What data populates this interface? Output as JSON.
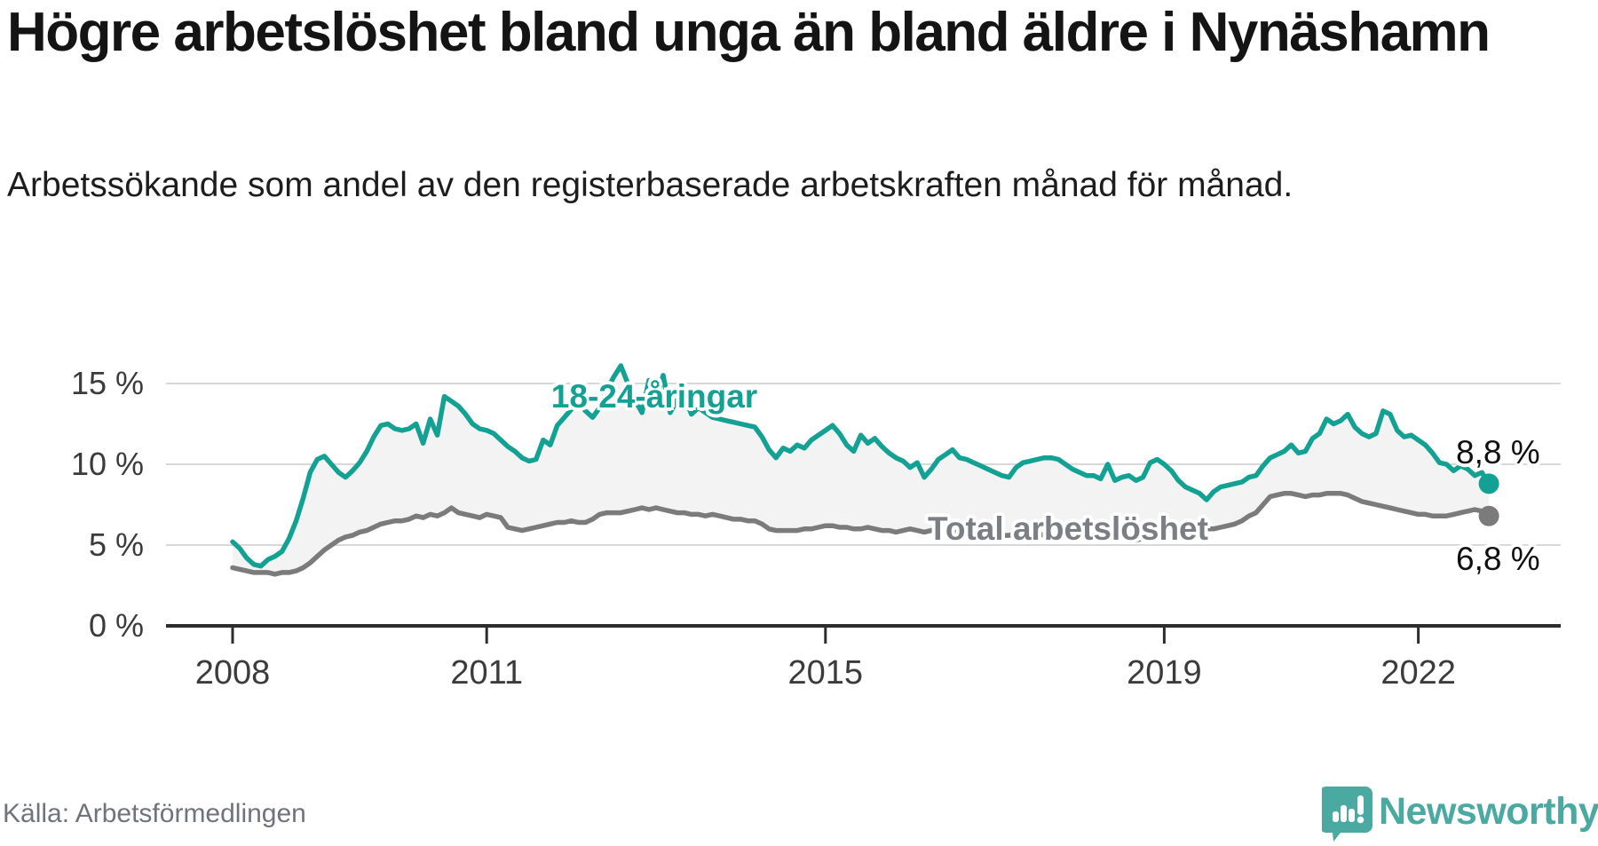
{
  "header": {
    "title": "Högre arbetslöshet bland unga än bland äldre i Nynäshamn",
    "subtitle": "Arbetssökande som andel av den registerbaserade arbetskraften månad för månad."
  },
  "source": {
    "label": "Källa: Arbetsförmedlingen"
  },
  "branding": {
    "name": "Newsworthy",
    "logo_icon": "bar-chart-exclamation-speech-bubble",
    "logo_color": "#4aa9a1"
  },
  "colors": {
    "youth_line": "#12a193",
    "total_line": "#7b7b7b",
    "between_area_fill": "#f3f3f3",
    "gridline": "#d8d8d8",
    "axis": "#2d2d2d"
  },
  "chart_data": {
    "type": "line",
    "unit": "%",
    "grid": "horizontal-only",
    "x_start": "2008-01",
    "x_end": "2022-11",
    "ylim": [
      0,
      16.5
    ],
    "y_ticks": [
      0,
      5,
      10,
      15
    ],
    "y_tick_labels": [
      "0 %",
      "5 %",
      "10 %",
      "15 %"
    ],
    "x_ticks": [
      {
        "year": 2008,
        "label": "2008"
      },
      {
        "year": 2011,
        "label": "2011"
      },
      {
        "year": 2015,
        "label": "2015"
      },
      {
        "year": 2019,
        "label": "2019"
      },
      {
        "year": 2022,
        "label": "2022"
      }
    ],
    "series": [
      {
        "name": "18-24-åringar",
        "color": "#12a193",
        "end_label": "8,8 %",
        "end_value": 8.8,
        "values": [
          5.2,
          4.8,
          4.2,
          3.8,
          3.7,
          4.1,
          4.3,
          4.6,
          5.4,
          6.5,
          7.9,
          9.5,
          10.3,
          10.5,
          10.0,
          9.5,
          9.2,
          9.6,
          10.1,
          10.8,
          11.7,
          12.4,
          12.5,
          12.2,
          12.1,
          12.2,
          12.5,
          11.3,
          12.8,
          11.8,
          14.2,
          13.9,
          13.6,
          13.1,
          12.5,
          12.2,
          12.1,
          11.9,
          11.5,
          11.1,
          10.8,
          10.4,
          10.2,
          10.3,
          11.5,
          11.2,
          12.4,
          12.9,
          13.4,
          13.8,
          13.3,
          12.9,
          13.5,
          14.6,
          15.4,
          16.1,
          15.0,
          14.0,
          13.2,
          15.2,
          14.0,
          15.5,
          13.2,
          14.0,
          14.2,
          13.1,
          13.5,
          13.2,
          12.9,
          12.8,
          12.7,
          12.6,
          12.5,
          12.4,
          12.3,
          11.7,
          10.9,
          10.4,
          11.0,
          10.8,
          11.2,
          11.0,
          11.5,
          11.8,
          12.1,
          12.4,
          11.9,
          11.2,
          10.8,
          11.8,
          11.3,
          11.6,
          11.1,
          10.7,
          10.4,
          10.2,
          9.8,
          10.1,
          9.2,
          9.7,
          10.3,
          10.6,
          10.9,
          10.4,
          10.3,
          10.1,
          9.9,
          9.7,
          9.5,
          9.3,
          9.2,
          9.8,
          10.1,
          10.2,
          10.3,
          10.4,
          10.4,
          10.3,
          10.0,
          9.7,
          9.5,
          9.3,
          9.3,
          9.1,
          10.0,
          9.0,
          9.2,
          9.3,
          9.0,
          9.2,
          10.1,
          10.3,
          10.0,
          9.6,
          9.0,
          8.6,
          8.4,
          8.2,
          7.8,
          8.3,
          8.6,
          8.7,
          8.8,
          8.9,
          9.2,
          9.3,
          9.9,
          10.4,
          10.6,
          10.8,
          11.2,
          10.7,
          10.8,
          11.6,
          11.9,
          12.8,
          12.5,
          12.7,
          13.1,
          12.3,
          11.9,
          11.7,
          11.9,
          13.3,
          13.1,
          12.1,
          11.7,
          11.8,
          11.5,
          11.2,
          10.7,
          10.1,
          10.0,
          9.6,
          9.9,
          9.7,
          9.3,
          9.5,
          8.8
        ]
      },
      {
        "name": "Total arbetslöshet",
        "color": "#7b7b7b",
        "end_label": "6,8 %",
        "end_value": 6.8,
        "values": [
          3.6,
          3.5,
          3.4,
          3.3,
          3.3,
          3.3,
          3.2,
          3.3,
          3.3,
          3.4,
          3.6,
          3.9,
          4.3,
          4.7,
          5.0,
          5.3,
          5.5,
          5.6,
          5.8,
          5.9,
          6.1,
          6.3,
          6.4,
          6.5,
          6.5,
          6.6,
          6.8,
          6.7,
          6.9,
          6.8,
          7.0,
          7.3,
          7.0,
          6.9,
          6.8,
          6.7,
          6.9,
          6.8,
          6.7,
          6.1,
          6.0,
          5.9,
          6.0,
          6.1,
          6.2,
          6.3,
          6.4,
          6.4,
          6.5,
          6.4,
          6.4,
          6.6,
          6.9,
          7.0,
          7.0,
          7.0,
          7.1,
          7.2,
          7.3,
          7.2,
          7.3,
          7.2,
          7.1,
          7.0,
          7.0,
          6.9,
          6.9,
          6.8,
          6.9,
          6.8,
          6.7,
          6.6,
          6.6,
          6.5,
          6.5,
          6.3,
          6.0,
          5.9,
          5.9,
          5.9,
          5.9,
          6.0,
          6.0,
          6.1,
          6.2,
          6.2,
          6.1,
          6.1,
          6.0,
          6.0,
          6.1,
          6.0,
          5.9,
          5.9,
          5.8,
          5.9,
          6.0,
          5.9,
          5.8,
          5.9,
          6.0,
          5.9,
          5.8,
          5.8,
          5.7,
          5.7,
          5.6,
          5.7,
          5.7,
          5.6,
          5.6,
          5.7,
          5.8,
          5.7,
          5.7,
          5.6,
          5.6,
          5.5,
          5.5,
          5.6,
          5.6,
          5.5,
          5.4,
          5.4,
          5.5,
          5.4,
          5.5,
          5.4,
          5.3,
          5.4,
          5.5,
          5.6,
          5.7,
          5.6,
          5.6,
          5.7,
          5.8,
          5.9,
          6.0,
          6.0,
          6.1,
          6.2,
          6.3,
          6.5,
          6.8,
          7.0,
          7.5,
          8.0,
          8.1,
          8.2,
          8.2,
          8.1,
          8.0,
          8.1,
          8.1,
          8.2,
          8.2,
          8.2,
          8.1,
          7.9,
          7.7,
          7.6,
          7.5,
          7.4,
          7.3,
          7.2,
          7.1,
          7.0,
          6.9,
          6.9,
          6.8,
          6.8,
          6.8,
          6.9,
          7.0,
          7.1,
          7.2,
          7.1,
          6.8
        ]
      }
    ]
  }
}
